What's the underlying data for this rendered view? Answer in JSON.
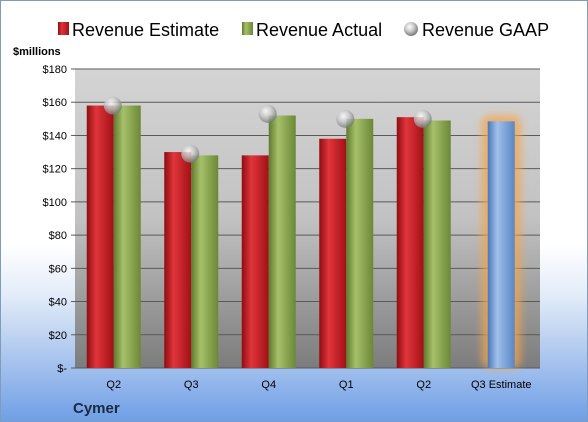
{
  "chart_data": {
    "type": "bar",
    "unit_label": "$millions",
    "company": "Cymer",
    "categories": [
      "Q2",
      "Q3",
      "Q4",
      "Q1",
      "Q2",
      "Q3 Estimate"
    ],
    "y_ticks": [
      "$-",
      "$20",
      "$40",
      "$60",
      "$80",
      "$100",
      "$120",
      "$140",
      "$160",
      "$180"
    ],
    "ylim": [
      0,
      180
    ],
    "legend_position": "top",
    "grid": true,
    "series": [
      {
        "name": "Revenue Estimate",
        "color": "#c0161e",
        "values": [
          158,
          130,
          128,
          138,
          151,
          null
        ]
      },
      {
        "name": "Revenue Actual",
        "color": "#86a14c",
        "values": [
          158,
          128,
          152,
          150,
          149,
          148.5
        ]
      },
      {
        "name": "Revenue GAAP",
        "color": "#b0b0b0",
        "values": [
          158,
          129,
          153,
          150,
          150,
          null
        ]
      }
    ],
    "estimate_bar_color": "#6f9ad6",
    "estimate_glow_color": "#f5a54a"
  }
}
